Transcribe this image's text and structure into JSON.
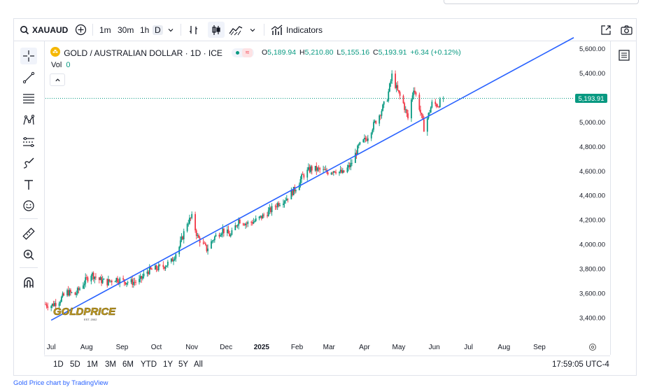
{
  "toolbar": {
    "symbol": "XAUAUD",
    "intervals": [
      "1m",
      "30m",
      "1h",
      "D"
    ],
    "indicators_label": "Indicators"
  },
  "legend": {
    "title": "GOLD / AUSTRALIAN DOLLAR · 1D · ICE",
    "vol_label": "Vol",
    "vol_value": "0",
    "open_label": "O",
    "open": "5,189.94",
    "high_label": "H",
    "high": "5,210.80",
    "low_label": "L",
    "low": "5,155.16",
    "close_label": "C",
    "close": "5,193.91",
    "change": "+6.34 (+0.12%)"
  },
  "bottom": {
    "ranges": [
      "1D",
      "5D",
      "1M",
      "3M",
      "6M",
      "YTD",
      "1Y",
      "5Y",
      "All"
    ],
    "time": "17:59:05 UTC-4"
  },
  "watermark": {
    "text": "GOLDPRICE",
    "sub": "EST. 2002"
  },
  "credit": "Gold Price chart by TradingView",
  "colors": {
    "up": "#089981",
    "down": "#f23645",
    "trendline": "#2962ff",
    "price_tag": "#089981"
  },
  "chart_data": {
    "type": "candlestick",
    "symbol": "XAUAUD",
    "timeframe": "1D",
    "x_tick_labels": [
      "Jul",
      "Aug",
      "Sep",
      "Oct",
      "Nov",
      "Dec",
      "2025",
      "Feb",
      "Mar",
      "Apr",
      "May",
      "Jun",
      "Jul",
      "Aug",
      "Sep"
    ],
    "y_tick_labels": [
      "3,400.00",
      "3,600.00",
      "3,800.00",
      "4,000.00",
      "4,200.00",
      "4,400.00",
      "4,600.00",
      "4,800.00",
      "5,000.00",
      "5,200.00",
      "5,400.00",
      "5,600.00"
    ],
    "ylim": [
      3280,
      5660
    ],
    "last_price": 5193.91,
    "last_price_label": "5,193.91",
    "x_range": [
      "2024-06-26",
      "2025-10-01"
    ],
    "close_series": [
      {
        "date": "2024-06-26",
        "close": 3510
      },
      {
        "date": "2024-07-01",
        "close": 3500
      },
      {
        "date": "2024-07-08",
        "close": 3540
      },
      {
        "date": "2024-07-15",
        "close": 3610
      },
      {
        "date": "2024-07-22",
        "close": 3590
      },
      {
        "date": "2024-07-29",
        "close": 3680
      },
      {
        "date": "2024-08-05",
        "close": 3760
      },
      {
        "date": "2024-08-12",
        "close": 3710
      },
      {
        "date": "2024-08-19",
        "close": 3690
      },
      {
        "date": "2024-08-26",
        "close": 3720
      },
      {
        "date": "2024-09-02",
        "close": 3700
      },
      {
        "date": "2024-09-09",
        "close": 3690
      },
      {
        "date": "2024-09-16",
        "close": 3700
      },
      {
        "date": "2024-09-23",
        "close": 3780
      },
      {
        "date": "2024-09-30",
        "close": 3800
      },
      {
        "date": "2024-10-07",
        "close": 3820
      },
      {
        "date": "2024-10-14",
        "close": 3860
      },
      {
        "date": "2024-10-21",
        "close": 3980
      },
      {
        "date": "2024-10-28",
        "close": 4180
      },
      {
        "date": "2024-11-01",
        "close": 4220
      },
      {
        "date": "2024-11-06",
        "close": 4060
      },
      {
        "date": "2024-11-14",
        "close": 3960
      },
      {
        "date": "2024-11-21",
        "close": 4060
      },
      {
        "date": "2024-11-28",
        "close": 4120
      },
      {
        "date": "2024-12-05",
        "close": 4070
      },
      {
        "date": "2024-12-12",
        "close": 4200
      },
      {
        "date": "2024-12-19",
        "close": 4170
      },
      {
        "date": "2024-12-26",
        "close": 4190
      },
      {
        "date": "2025-01-02",
        "close": 4230
      },
      {
        "date": "2025-01-09",
        "close": 4280
      },
      {
        "date": "2025-01-16",
        "close": 4340
      },
      {
        "date": "2025-01-23",
        "close": 4380
      },
      {
        "date": "2025-01-30",
        "close": 4450
      },
      {
        "date": "2025-02-06",
        "close": 4560
      },
      {
        "date": "2025-02-13",
        "close": 4620
      },
      {
        "date": "2025-02-20",
        "close": 4610
      },
      {
        "date": "2025-02-27",
        "close": 4590
      },
      {
        "date": "2025-03-06",
        "close": 4610
      },
      {
        "date": "2025-03-13",
        "close": 4580
      },
      {
        "date": "2025-03-20",
        "close": 4650
      },
      {
        "date": "2025-03-27",
        "close": 4800
      },
      {
        "date": "2025-04-03",
        "close": 4870
      },
      {
        "date": "2025-04-08",
        "close": 4960
      },
      {
        "date": "2025-04-14",
        "close": 5060
      },
      {
        "date": "2025-04-21",
        "close": 5200
      },
      {
        "date": "2025-04-25",
        "close": 5380
      },
      {
        "date": "2025-04-30",
        "close": 5250
      },
      {
        "date": "2025-05-05",
        "close": 5150
      },
      {
        "date": "2025-05-09",
        "close": 5030
      },
      {
        "date": "2025-05-14",
        "close": 5280
      },
      {
        "date": "2025-05-19",
        "close": 5120
      },
      {
        "date": "2025-05-23",
        "close": 4950
      },
      {
        "date": "2025-05-27",
        "close": 5060
      },
      {
        "date": "2025-05-30",
        "close": 5150
      },
      {
        "date": "2025-06-04",
        "close": 5140
      },
      {
        "date": "2025-06-09",
        "close": 5193.91
      }
    ],
    "trendline": {
      "start": {
        "date": "2024-07-01",
        "value": 3380
      },
      "end": {
        "date": "2025-10-01",
        "value": 5690
      }
    }
  }
}
